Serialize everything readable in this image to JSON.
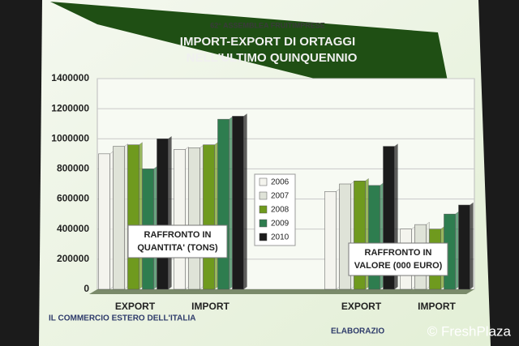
{
  "chart_data": {
    "type": "bar",
    "header": "62° ASSEMBLEA FRUITIMPRESE",
    "title": [
      "IMPORT-EXPORT DI ORTAGGI",
      "NELL'ULTIMO QUINQUENNIO"
    ],
    "annotations": [
      [
        "RAFFRONTO IN",
        "QUANTITA' (TONS)"
      ],
      [
        "RAFFRONTO IN",
        "VALORE (000 EURO)"
      ]
    ],
    "footer": [
      "IL COMMERCIO ESTERO DELL'ITALIA",
      "ELABORAZIO"
    ],
    "watermark": "© FreshPlaza",
    "categories": [
      "EXPORT",
      "IMPORT",
      "EXPORT",
      "IMPORT"
    ],
    "series": [
      {
        "name": "2006",
        "color": "#f4f4ee",
        "values": [
          900000,
          930000,
          650000,
          400000
        ]
      },
      {
        "name": "2007",
        "color": "#dfe3d8",
        "values": [
          950000,
          940000,
          700000,
          430000
        ]
      },
      {
        "name": "2008",
        "color": "#6f9a1e",
        "values": [
          960000,
          960000,
          720000,
          400000
        ]
      },
      {
        "name": "2009",
        "color": "#2e7d4f",
        "values": [
          800000,
          1130000,
          690000,
          500000
        ]
      },
      {
        "name": "2010",
        "color": "#1c1c1c",
        "values": [
          1000000,
          1150000,
          950000,
          560000
        ]
      }
    ],
    "ylim": [
      0,
      1400000
    ],
    "yticks": [
      0,
      200000,
      400000,
      600000,
      800000,
      1000000,
      1200000,
      1400000
    ],
    "grid": true
  }
}
